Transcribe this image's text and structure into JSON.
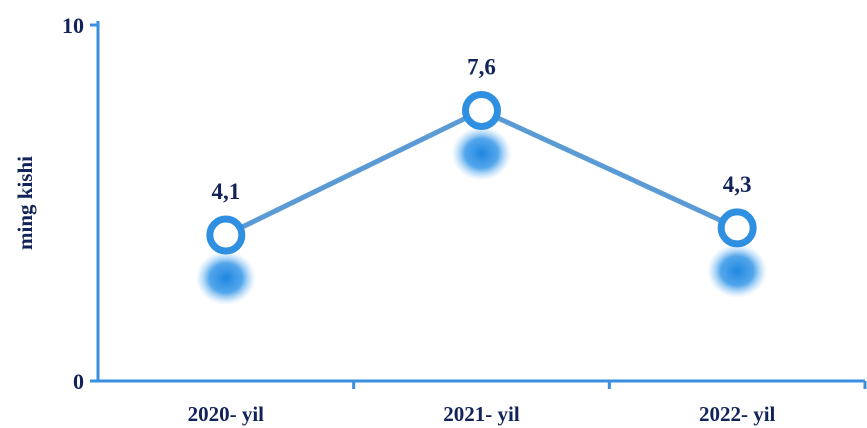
{
  "chart_data": {
    "type": "line",
    "categories": [
      "2020- yil",
      "2021- yil",
      "2022- yil"
    ],
    "series": [
      {
        "values": [
          4.1,
          7.6,
          4.3
        ]
      }
    ],
    "data_labels": [
      "4,1",
      "7,6",
      "4,3"
    ],
    "title": "",
    "xlabel": "",
    "ylabel": "ming kishi",
    "ylim": [
      0,
      10
    ],
    "y_ticks": [
      {
        "value": 0,
        "label": "0"
      },
      {
        "value": 10,
        "label": "10"
      }
    ],
    "grid": false,
    "legend": "none",
    "colors": {
      "line": "#5b9bd5",
      "marker_ring": "#2f8fe0",
      "axis": "#3a8fde",
      "text": "#12235a"
    }
  }
}
